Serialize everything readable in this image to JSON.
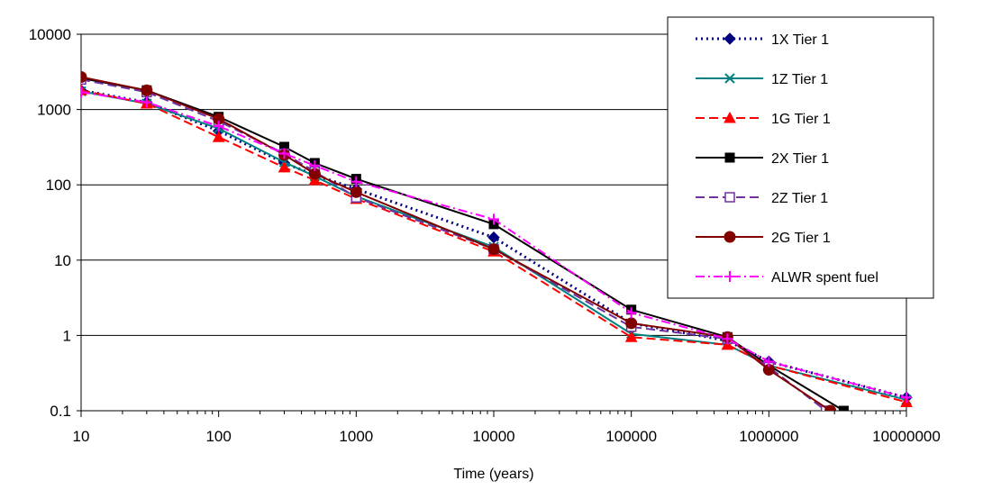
{
  "chart_data": {
    "type": "line",
    "title": "",
    "xlabel": "Time (years)",
    "ylabel": "",
    "x_scale": "log",
    "y_scale": "log",
    "xlim": [
      10,
      10000000
    ],
    "ylim": [
      0.1,
      10000
    ],
    "x_tick_labels": [
      "10",
      "100",
      "1000",
      "10000",
      "100000",
      "1000000",
      "10000000"
    ],
    "y_tick_labels": [
      "10000",
      "1000",
      "100",
      "10",
      "1",
      "0.1"
    ],
    "grid": "horizontal major gridlines",
    "legend_position": "top-right",
    "series": [
      {
        "name": "1X Tier 1",
        "color": "#000080",
        "dash": "dotted",
        "marker": "diamond",
        "x": [
          10,
          30,
          100,
          300,
          500,
          1000,
          10000,
          100000,
          500000,
          1000000,
          10000000
        ],
        "y": [
          1800,
          1250,
          520,
          195,
          135,
          88,
          20,
          1.45,
          0.85,
          0.45,
          0.15
        ]
      },
      {
        "name": "1Z Tier 1",
        "color": "#008080",
        "dash": "solid",
        "marker": "x",
        "x": [
          10,
          30,
          100,
          300,
          500,
          1000,
          10000,
          100000,
          500000,
          1000000,
          10000000
        ],
        "y": [
          1750,
          1200,
          560,
          200,
          130,
          70,
          15,
          1.05,
          0.75,
          0.4,
          0.14
        ]
      },
      {
        "name": "1G Tier 1",
        "color": "#ff0000",
        "dash": "dashed",
        "marker": "triangle",
        "x": [
          10,
          30,
          100,
          300,
          500,
          1000,
          10000,
          100000,
          500000,
          1000000,
          10000000
        ],
        "y": [
          1800,
          1200,
          430,
          170,
          115,
          65,
          13,
          0.95,
          0.75,
          0.4,
          0.13
        ]
      },
      {
        "name": "2X Tier 1",
        "color": "#000000",
        "dash": "solid",
        "marker": "square",
        "x": [
          10,
          30,
          100,
          300,
          500,
          1000,
          10000,
          100000,
          500000,
          1000000,
          3500000
        ],
        "y": [
          2600,
          1800,
          800,
          320,
          195,
          120,
          30,
          2.2,
          0.95,
          0.4,
          0.1
        ]
      },
      {
        "name": "2Z Tier 1",
        "color": "#7030a0",
        "dash": "dashed",
        "marker": "open-square",
        "x": [
          10,
          30,
          100,
          300,
          500,
          1000,
          10000,
          100000,
          500000,
          1000000,
          2600000
        ],
        "y": [
          2500,
          1700,
          700,
          260,
          150,
          68,
          14,
          1.3,
          0.9,
          0.38,
          0.1
        ]
      },
      {
        "name": "2G Tier 1",
        "color": "#800000",
        "dash": "solid",
        "marker": "circle",
        "x": [
          10,
          30,
          100,
          300,
          500,
          1000,
          10000,
          100000,
          500000,
          1000000,
          2800000
        ],
        "y": [
          2700,
          1800,
          750,
          250,
          140,
          80,
          14,
          1.45,
          0.95,
          0.35,
          0.1
        ]
      },
      {
        "name": "ALWR spent fuel",
        "color": "#ff00ff",
        "dash": "dashdot",
        "marker": "plus",
        "x": [
          10,
          30,
          100,
          300,
          500,
          1000,
          10000,
          100000,
          500000,
          1000000,
          10000000
        ],
        "y": [
          1700,
          1250,
          600,
          260,
          180,
          110,
          35,
          2.0,
          0.9,
          0.45,
          0.15
        ]
      }
    ]
  }
}
